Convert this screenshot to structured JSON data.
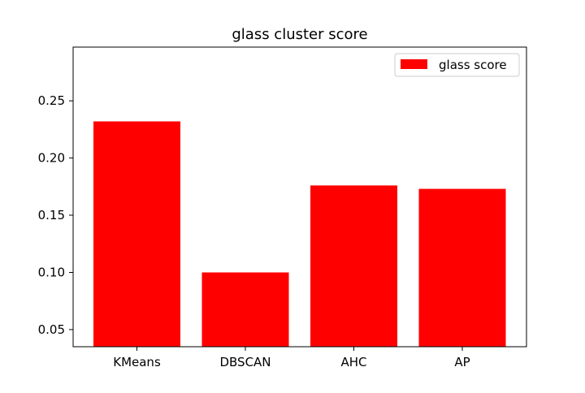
{
  "chart_data": {
    "type": "bar",
    "title": "glass cluster score",
    "xlabel": "",
    "ylabel": "",
    "categories": [
      "KMeans",
      "DBSCAN",
      "AHC",
      "AP"
    ],
    "series": [
      {
        "name": "glass score",
        "color": "#ff0000",
        "values": [
          0.232,
          0.1,
          0.176,
          0.173
        ]
      }
    ],
    "ylim": [
      0.035,
      0.297
    ],
    "yticks": [
      0.05,
      0.1,
      0.15,
      0.2,
      0.25
    ],
    "ytick_labels": [
      "0.05",
      "0.10",
      "0.15",
      "0.20",
      "0.25"
    ],
    "grid": false,
    "legend": {
      "position": "top-right",
      "entries": [
        "glass score"
      ]
    }
  }
}
